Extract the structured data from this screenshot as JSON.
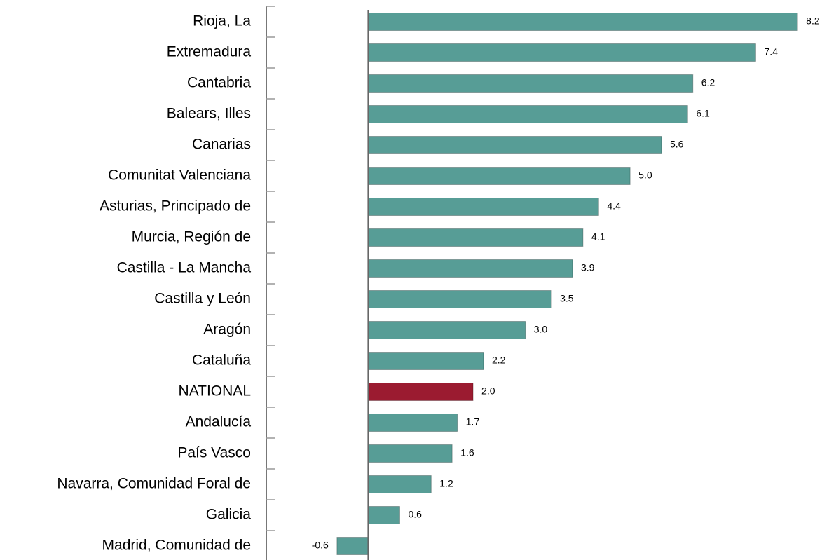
{
  "chart_data": {
    "type": "barh",
    "categories": [
      "Rioja, La",
      "Extremadura",
      "Cantabria",
      "Balears, Illes",
      "Canarias",
      "Comunitat Valenciana",
      "Asturias, Principado de",
      "Murcia, Región de",
      "Castilla - La Mancha",
      "Castilla y León",
      "Aragón",
      "Cataluña",
      "NATIONAL",
      "Andalucía",
      "País Vasco",
      "Navarra, Comunidad Foral de",
      "Galicia",
      "Madrid, Comunidad de"
    ],
    "values": [
      8.2,
      7.4,
      6.2,
      6.1,
      5.6,
      5.0,
      4.4,
      4.1,
      3.9,
      3.5,
      3.0,
      2.2,
      2.0,
      1.7,
      1.6,
      1.2,
      0.6,
      -0.6
    ],
    "value_labels": [
      "8.2",
      "7.4",
      "6.2",
      "6.1",
      "5.6",
      "5.0",
      "4.4",
      "4.1",
      "3.9",
      "3.5",
      "3.0",
      "2.2",
      "2.0",
      "1.7",
      "1.6",
      "1.2",
      "0.6",
      "-0.6"
    ],
    "colors": [
      "#579d96",
      "#579d96",
      "#579d96",
      "#579d96",
      "#579d96",
      "#579d96",
      "#579d96",
      "#579d96",
      "#579d96",
      "#579d96",
      "#579d96",
      "#579d96",
      "#9b1b30",
      "#579d96",
      "#579d96",
      "#579d96",
      "#579d96",
      "#579d96"
    ],
    "xlim": [
      -1.95,
      8.8
    ]
  }
}
